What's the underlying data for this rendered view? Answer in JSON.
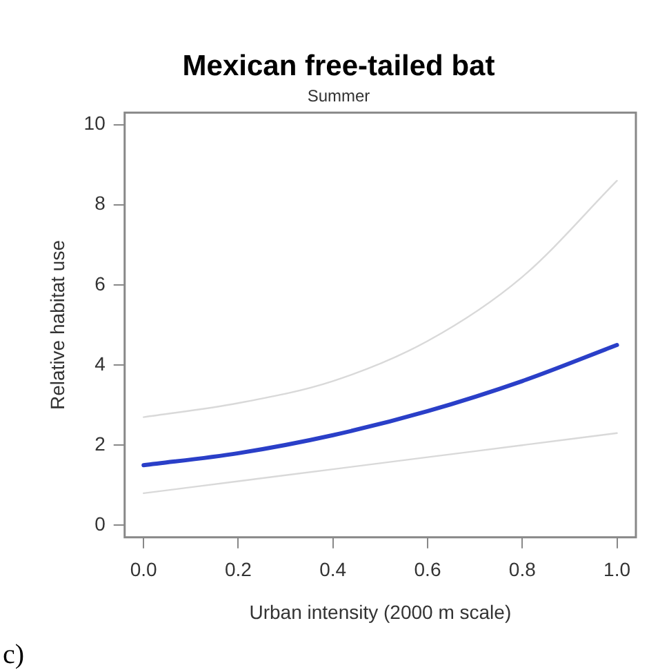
{
  "chart_data": {
    "type": "line",
    "title": "Mexican free-tailed bat",
    "subtitle": "Summer",
    "xlabel": "Urban intensity (2000 m scale)",
    "ylabel": "Relative habitat use",
    "x": [
      0,
      0.2,
      0.4,
      0.6,
      0.8,
      1.0
    ],
    "series": [
      {
        "color": "#d9d9d9",
        "values": [
          2.7,
          3.05,
          3.6,
          4.6,
          6.2,
          8.6
        ]
      },
      {
        "color": "#d9d9d9",
        "values": [
          0.8,
          1.1,
          1.4,
          1.7,
          2.0,
          2.3
        ]
      },
      {
        "color": "#2a3fc8",
        "values": [
          1.5,
          1.8,
          2.25,
          2.85,
          3.6,
          4.5
        ]
      }
    ],
    "xlim": [
      -0.04,
      1.04
    ],
    "xticks": [
      {
        "value": 0,
        "label": "0.0"
      },
      0.2,
      0.4,
      0.6,
      0.8,
      {
        "value": 1,
        "label": "1.0"
      }
    ],
    "ylim": [
      -0.3,
      10.3
    ],
    "yticks": [
      0,
      2,
      4,
      6,
      8,
      10
    ],
    "grid": false,
    "legend": false,
    "marker": "none",
    "line_style": "solid",
    "annotations": [
      "c)"
    ]
  }
}
